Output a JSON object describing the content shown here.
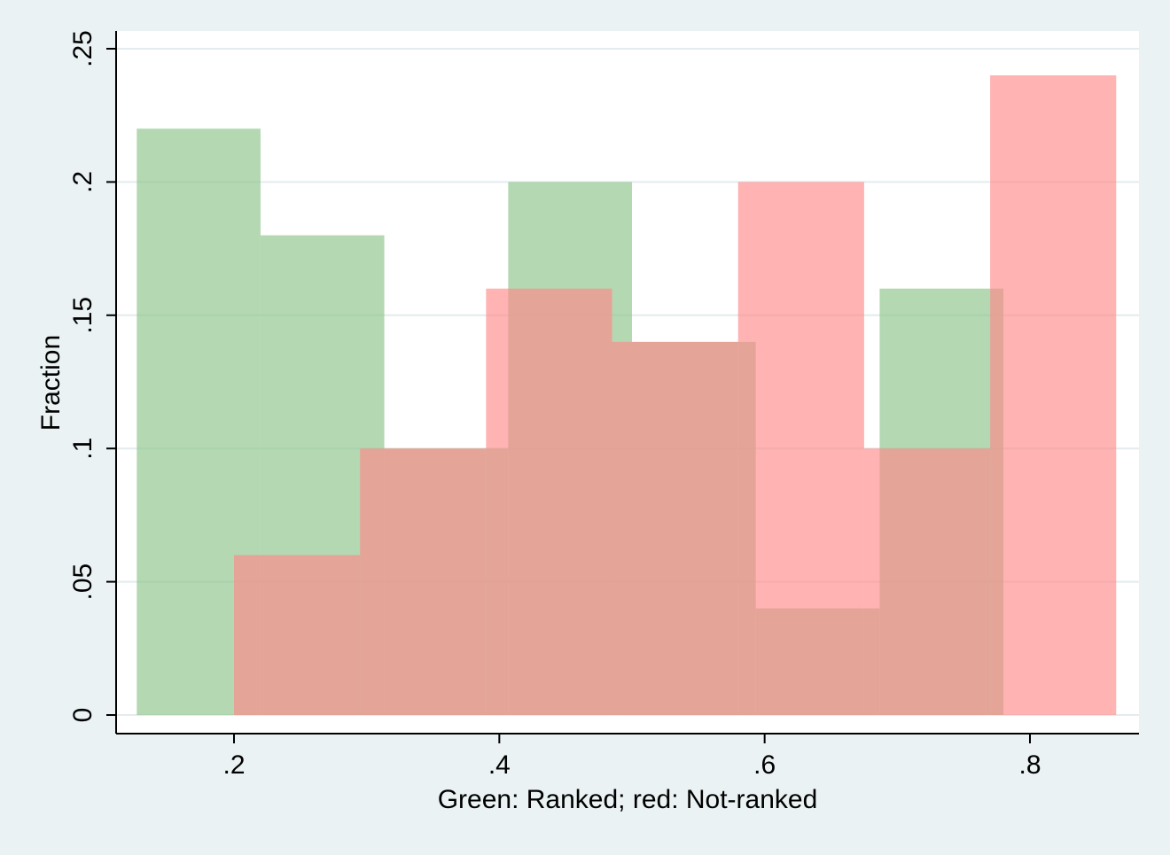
{
  "chart_data": {
    "type": "histogram",
    "xlabel": "Green: Ranked; red: Not-ranked",
    "ylabel": "Fraction",
    "xlim": [
      0.123,
      0.873
    ],
    "ylim": [
      0,
      0.25
    ],
    "x_ticks": [
      0.2,
      0.4,
      0.6,
      0.8
    ],
    "x_tick_labels": [
      ".2",
      ".4",
      ".6",
      ".8"
    ],
    "y_ticks": [
      0,
      0.05,
      0.1,
      0.15,
      0.2,
      0.25
    ],
    "y_tick_labels": [
      "0",
      ".05",
      ".1",
      ".15",
      ".2",
      ".25"
    ],
    "grid": true,
    "series": [
      {
        "name": "Ranked",
        "color": "#8fc68e",
        "opacity": 0.68,
        "bins": [
          {
            "x0": 0.1267,
            "x1": 0.22,
            "value": 0.22
          },
          {
            "x0": 0.22,
            "x1": 0.3133,
            "value": 0.18
          },
          {
            "x0": 0.3133,
            "x1": 0.4067,
            "value": 0.1
          },
          {
            "x0": 0.4067,
            "x1": 0.5,
            "value": 0.2
          },
          {
            "x0": 0.5,
            "x1": 0.5933,
            "value": 0.14
          },
          {
            "x0": 0.5933,
            "x1": 0.6867,
            "value": 0.04
          },
          {
            "x0": 0.6867,
            "x1": 0.78,
            "value": 0.16
          }
        ]
      },
      {
        "name": "Not-ranked",
        "color": "#ff8a8a",
        "opacity": 0.65,
        "bins": [
          {
            "x0": 0.2,
            "x1": 0.295,
            "value": 0.06
          },
          {
            "x0": 0.295,
            "x1": 0.39,
            "value": 0.1
          },
          {
            "x0": 0.39,
            "x1": 0.485,
            "value": 0.16
          },
          {
            "x0": 0.485,
            "x1": 0.58,
            "value": 0.14
          },
          {
            "x0": 0.58,
            "x1": 0.675,
            "value": 0.2
          },
          {
            "x0": 0.675,
            "x1": 0.77,
            "value": 0.1
          },
          {
            "x0": 0.77,
            "x1": 0.865,
            "value": 0.24
          }
        ]
      }
    ]
  }
}
